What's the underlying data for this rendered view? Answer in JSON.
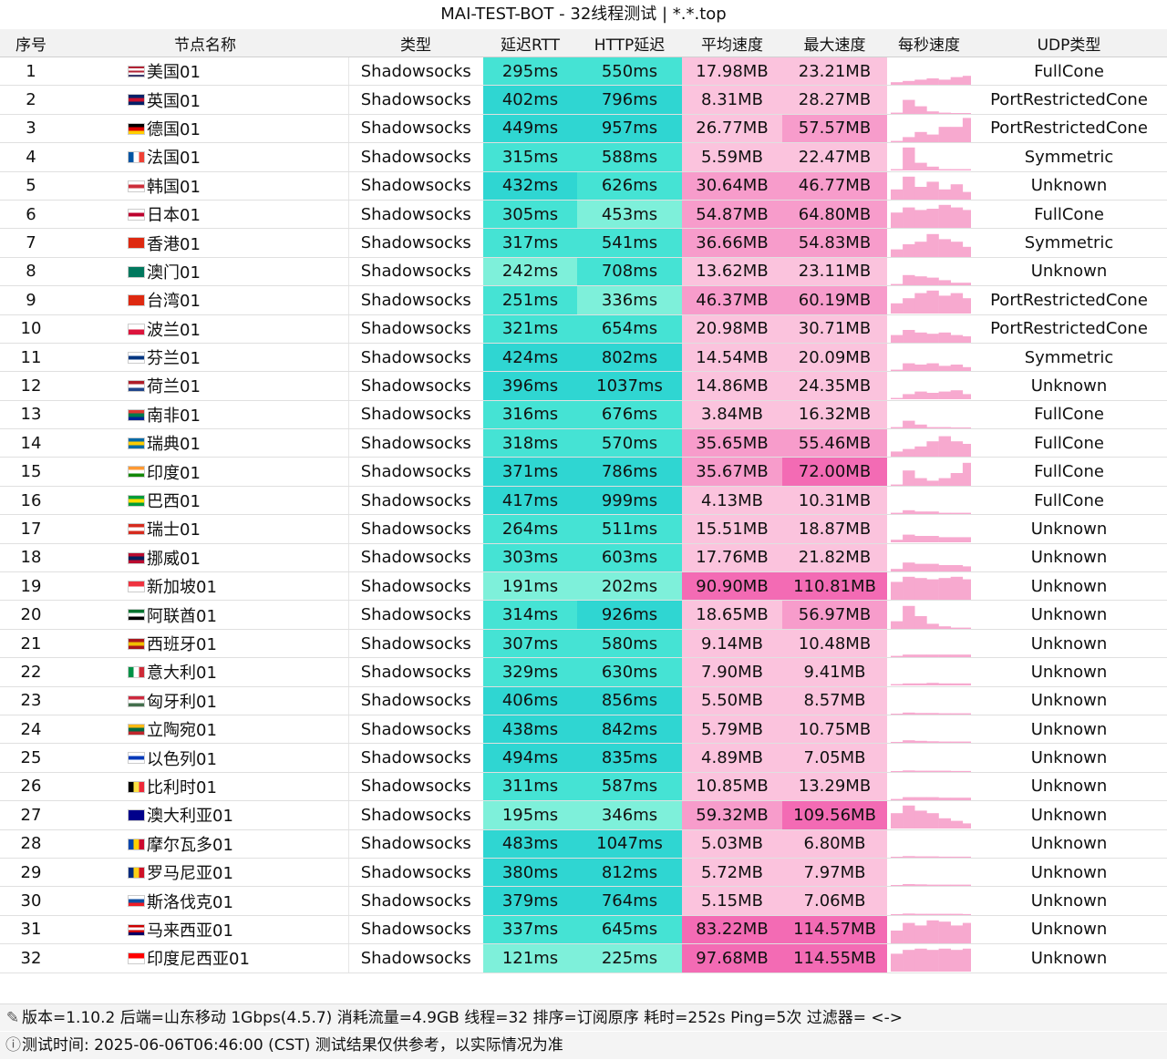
{
  "title": "MAI-TEST-BOT - 32线程测试 | *.*.top",
  "columns": [
    "序号",
    "节点名称",
    "类型",
    "延迟RTT",
    "HTTP延迟",
    "平均速度",
    "最大速度",
    "每秒速度",
    "UDP类型"
  ],
  "rows": [
    {
      "id": "1",
      "flag": "us",
      "name": "美国01",
      "type": "Shadowsocks",
      "rtt": "295ms",
      "http": "550ms",
      "avg": "17.98MB",
      "max": "23.21MB",
      "udp": "FullCone",
      "spark": [
        0.1,
        0.15,
        0.2,
        0.25,
        0.2,
        0.3,
        0.35
      ]
    },
    {
      "id": "2",
      "flag": "gb",
      "name": "英国01",
      "type": "Shadowsocks",
      "rtt": "402ms",
      "http": "796ms",
      "avg": "8.31MB",
      "max": "28.27MB",
      "udp": "PortRestrictedCone",
      "spark": [
        0.05,
        0.55,
        0.3,
        0.1,
        0.05,
        0.0,
        0.0
      ]
    },
    {
      "id": "3",
      "flag": "de",
      "name": "德国01",
      "type": "Shadowsocks",
      "rtt": "449ms",
      "http": "957ms",
      "avg": "26.77MB",
      "max": "57.57MB",
      "udp": "PortRestrictedCone",
      "spark": [
        0.05,
        0.2,
        0.4,
        0.3,
        0.6,
        0.6,
        0.95
      ]
    },
    {
      "id": "4",
      "flag": "fr",
      "name": "法国01",
      "type": "Shadowsocks",
      "rtt": "315ms",
      "http": "588ms",
      "avg": "5.59MB",
      "max": "22.47MB",
      "udp": "Symmetric",
      "spark": [
        0.05,
        0.9,
        0.3,
        0.15,
        0.05,
        0.05,
        0.05
      ]
    },
    {
      "id": "5",
      "flag": "kr",
      "name": "韩国01",
      "type": "Shadowsocks",
      "rtt": "432ms",
      "http": "626ms",
      "avg": "30.64MB",
      "max": "46.77MB",
      "udp": "Unknown",
      "spark": [
        0.4,
        0.9,
        0.5,
        0.7,
        0.4,
        0.6,
        0.3
      ]
    },
    {
      "id": "6",
      "flag": "jp",
      "name": "日本01",
      "type": "Shadowsocks",
      "rtt": "305ms",
      "http": "453ms",
      "avg": "54.87MB",
      "max": "64.80MB",
      "udp": "FullCone",
      "spark": [
        0.6,
        0.8,
        0.7,
        0.75,
        0.9,
        0.8,
        0.7
      ]
    },
    {
      "id": "7",
      "flag": "hk",
      "name": "香港01",
      "type": "Shadowsocks",
      "rtt": "317ms",
      "http": "541ms",
      "avg": "36.66MB",
      "max": "54.83MB",
      "udp": "Symmetric",
      "spark": [
        0.3,
        0.5,
        0.6,
        0.9,
        0.7,
        0.6,
        0.4
      ]
    },
    {
      "id": "8",
      "flag": "mo",
      "name": "澳门01",
      "type": "Shadowsocks",
      "rtt": "242ms",
      "http": "708ms",
      "avg": "13.62MB",
      "max": "23.11MB",
      "udp": "Unknown",
      "spark": [
        0.05,
        0.4,
        0.35,
        0.3,
        0.2,
        0.1,
        0.1
      ]
    },
    {
      "id": "9",
      "flag": "cn",
      "name": "台湾01",
      "type": "Shadowsocks",
      "rtt": "251ms",
      "http": "336ms",
      "avg": "46.37MB",
      "max": "60.19MB",
      "udp": "PortRestrictedCone",
      "spark": [
        0.4,
        0.6,
        0.8,
        0.9,
        0.7,
        0.8,
        0.6
      ]
    },
    {
      "id": "10",
      "flag": "pl",
      "name": "波兰01",
      "type": "Shadowsocks",
      "rtt": "321ms",
      "http": "654ms",
      "avg": "20.98MB",
      "max": "30.71MB",
      "udp": "PortRestrictedCone",
      "spark": [
        0.3,
        0.5,
        0.4,
        0.35,
        0.4,
        0.3,
        0.25
      ]
    },
    {
      "id": "11",
      "flag": "fi",
      "name": "芬兰01",
      "type": "Shadowsocks",
      "rtt": "424ms",
      "http": "802ms",
      "avg": "14.54MB",
      "max": "20.09MB",
      "udp": "Symmetric",
      "spark": [
        0.05,
        0.3,
        0.25,
        0.3,
        0.2,
        0.25,
        0.15
      ]
    },
    {
      "id": "12",
      "flag": "nl",
      "name": "荷兰01",
      "type": "Shadowsocks",
      "rtt": "396ms",
      "http": "1037ms",
      "avg": "14.86MB",
      "max": "24.35MB",
      "udp": "Unknown",
      "spark": [
        0.05,
        0.2,
        0.3,
        0.25,
        0.3,
        0.35,
        0.2
      ]
    },
    {
      "id": "13",
      "flag": "za",
      "name": "南非01",
      "type": "Shadowsocks",
      "rtt": "316ms",
      "http": "676ms",
      "avg": "3.84MB",
      "max": "16.32MB",
      "udp": "FullCone",
      "spark": [
        0.05,
        0.3,
        0.15,
        0.05,
        0.05,
        0.02,
        0.02
      ]
    },
    {
      "id": "14",
      "flag": "se",
      "name": "瑞典01",
      "type": "Shadowsocks",
      "rtt": "318ms",
      "http": "570ms",
      "avg": "35.65MB",
      "max": "55.46MB",
      "udp": "FullCone",
      "spark": [
        0.2,
        0.3,
        0.4,
        0.6,
        0.8,
        0.6,
        0.5
      ]
    },
    {
      "id": "15",
      "flag": "in",
      "name": "印度01",
      "type": "Shadowsocks",
      "rtt": "371ms",
      "http": "786ms",
      "avg": "35.67MB",
      "max": "72.00MB",
      "udp": "FullCone",
      "spark": [
        0.05,
        0.6,
        0.3,
        0.2,
        0.3,
        0.5,
        0.9
      ]
    },
    {
      "id": "16",
      "flag": "br",
      "name": "巴西01",
      "type": "Shadowsocks",
      "rtt": "417ms",
      "http": "999ms",
      "avg": "4.13MB",
      "max": "10.31MB",
      "udp": "FullCone",
      "spark": [
        0.05,
        0.15,
        0.1,
        0.1,
        0.05,
        0.05,
        0.05
      ]
    },
    {
      "id": "17",
      "flag": "ch",
      "name": "瑞士01",
      "type": "Shadowsocks",
      "rtt": "264ms",
      "http": "511ms",
      "avg": "15.51MB",
      "max": "18.87MB",
      "udp": "Unknown",
      "spark": [
        0.1,
        0.3,
        0.25,
        0.25,
        0.2,
        0.2,
        0.2
      ]
    },
    {
      "id": "18",
      "flag": "no",
      "name": "挪威01",
      "type": "Shadowsocks",
      "rtt": "303ms",
      "http": "603ms",
      "avg": "17.76MB",
      "max": "21.82MB",
      "udp": "Unknown",
      "spark": [
        0.1,
        0.35,
        0.3,
        0.3,
        0.25,
        0.25,
        0.2
      ]
    },
    {
      "id": "19",
      "flag": "sg",
      "name": "新加坡01",
      "type": "Shadowsocks",
      "rtt": "191ms",
      "http": "202ms",
      "avg": "90.90MB",
      "max": "110.81MB",
      "udp": "Unknown",
      "spark": [
        0.7,
        0.9,
        0.85,
        0.8,
        0.85,
        0.9,
        0.8
      ]
    },
    {
      "id": "20",
      "flag": "ae",
      "name": "阿联酋01",
      "type": "Shadowsocks",
      "rtt": "314ms",
      "http": "926ms",
      "avg": "18.65MB",
      "max": "56.97MB",
      "udp": "Unknown",
      "spark": [
        0.3,
        0.9,
        0.5,
        0.2,
        0.1,
        0.05,
        0.05
      ]
    },
    {
      "id": "21",
      "flag": "es",
      "name": "西班牙01",
      "type": "Shadowsocks",
      "rtt": "307ms",
      "http": "580ms",
      "avg": "9.14MB",
      "max": "10.48MB",
      "udp": "Unknown",
      "spark": [
        0.05,
        0.1,
        0.1,
        0.1,
        0.1,
        0.1,
        0.1
      ]
    },
    {
      "id": "22",
      "flag": "it",
      "name": "意大利01",
      "type": "Shadowsocks",
      "rtt": "329ms",
      "http": "630ms",
      "avg": "7.90MB",
      "max": "9.41MB",
      "udp": "Unknown",
      "spark": [
        0.05,
        0.08,
        0.08,
        0.1,
        0.08,
        0.08,
        0.08
      ]
    },
    {
      "id": "23",
      "flag": "hu",
      "name": "匈牙利01",
      "type": "Shadowsocks",
      "rtt": "406ms",
      "http": "856ms",
      "avg": "5.50MB",
      "max": "8.57MB",
      "udp": "Unknown",
      "spark": [
        0.02,
        0.08,
        0.06,
        0.06,
        0.05,
        0.05,
        0.05
      ]
    },
    {
      "id": "24",
      "flag": "lt",
      "name": "立陶宛01",
      "type": "Shadowsocks",
      "rtt": "438ms",
      "http": "842ms",
      "avg": "5.79MB",
      "max": "10.75MB",
      "udp": "Unknown",
      "spark": [
        0.02,
        0.1,
        0.08,
        0.06,
        0.05,
        0.05,
        0.05
      ]
    },
    {
      "id": "25",
      "flag": "il",
      "name": "以色列01",
      "type": "Shadowsocks",
      "rtt": "494ms",
      "http": "835ms",
      "avg": "4.89MB",
      "max": "7.05MB",
      "udp": "Unknown",
      "spark": [
        0.02,
        0.06,
        0.05,
        0.05,
        0.05,
        0.04,
        0.04
      ]
    },
    {
      "id": "26",
      "flag": "be",
      "name": "比利时01",
      "type": "Shadowsocks",
      "rtt": "311ms",
      "http": "587ms",
      "avg": "10.85MB",
      "max": "13.29MB",
      "udp": "Unknown",
      "spark": [
        0.05,
        0.12,
        0.12,
        0.12,
        0.1,
        0.1,
        0.1
      ]
    },
    {
      "id": "27",
      "flag": "au",
      "name": "澳大利亚01",
      "type": "Shadowsocks",
      "rtt": "195ms",
      "http": "346ms",
      "avg": "59.32MB",
      "max": "109.56MB",
      "udp": "Unknown",
      "spark": [
        0.6,
        0.9,
        0.7,
        0.6,
        0.4,
        0.3,
        0.2
      ]
    },
    {
      "id": "28",
      "flag": "md",
      "name": "摩尔瓦多01",
      "type": "Shadowsocks",
      "rtt": "483ms",
      "http": "1047ms",
      "avg": "5.03MB",
      "max": "6.80MB",
      "udp": "Unknown",
      "spark": [
        0.02,
        0.06,
        0.05,
        0.05,
        0.04,
        0.04,
        0.04
      ]
    },
    {
      "id": "29",
      "flag": "ro",
      "name": "罗马尼亚01",
      "type": "Shadowsocks",
      "rtt": "380ms",
      "http": "812ms",
      "avg": "5.72MB",
      "max": "7.97MB",
      "udp": "Unknown",
      "spark": [
        0.02,
        0.07,
        0.06,
        0.05,
        0.05,
        0.05,
        0.05
      ]
    },
    {
      "id": "30",
      "flag": "sk",
      "name": "斯洛伐克01",
      "type": "Shadowsocks",
      "rtt": "379ms",
      "http": "764ms",
      "avg": "5.15MB",
      "max": "7.06MB",
      "udp": "Unknown",
      "spark": [
        0.02,
        0.06,
        0.05,
        0.05,
        0.05,
        0.05,
        0.04
      ]
    },
    {
      "id": "31",
      "flag": "my",
      "name": "马来西亚01",
      "type": "Shadowsocks",
      "rtt": "337ms",
      "http": "645ms",
      "avg": "83.22MB",
      "max": "114.57MB",
      "udp": "Unknown",
      "spark": [
        0.5,
        0.8,
        0.7,
        0.9,
        0.85,
        0.7,
        0.8
      ]
    },
    {
      "id": "32",
      "flag": "id",
      "name": "印度尼西亚01",
      "type": "Shadowsocks",
      "rtt": "121ms",
      "http": "225ms",
      "avg": "97.68MB",
      "max": "114.55MB",
      "udp": "Unknown",
      "spark": [
        0.7,
        0.85,
        0.9,
        0.85,
        0.9,
        0.85,
        0.9
      ]
    }
  ],
  "footer": {
    "line1": "版本=1.10.2  后端=山东移动 1Gbps(4.5.7) 消耗流量=4.9GB  线程=32  排序=订阅原序  耗时=252s  Ping=5次  过滤器= <->",
    "line2": "测试时间: 2025-06-06T06:46:00 (CST)  测试结果仅供参考，以实际情况为准",
    "icon1": "wrench-icon",
    "icon2": "info-icon"
  },
  "colors": {
    "rtt_fast": "#7ef0da",
    "rtt_mid": "#45e3d4",
    "rtt_slow": "#2fd6d2",
    "speed_high": "#f36bb4",
    "speed_mid": "#f79ccb",
    "speed_low": "#fbc3dd",
    "spark": "#f7a9cf"
  }
}
